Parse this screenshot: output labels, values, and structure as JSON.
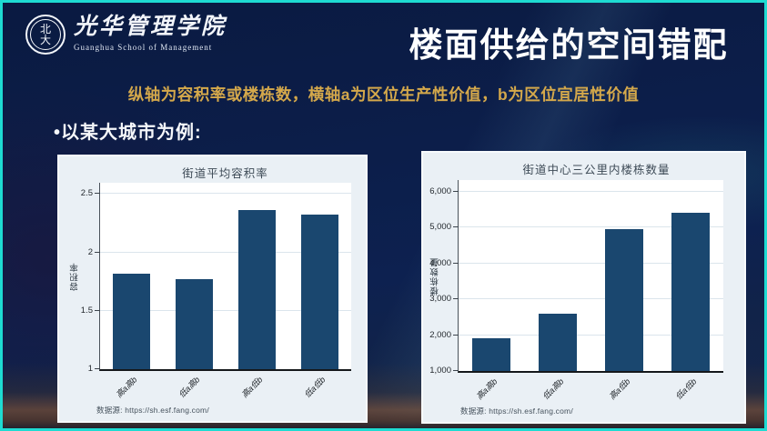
{
  "header": {
    "logo_cn": "光华管理学院",
    "logo_en": "Guanghua School of Management",
    "seal_glyph_top": "北",
    "seal_glyph_bottom": "大",
    "title": "楼面供给的空间错配"
  },
  "subtitle": "纵轴为容积率或楼栋数，横轴a为区位生产性价值，b为区位宜居性价值",
  "bullet": "•以某大城市为例:",
  "colors": {
    "frame_accent": "#1edbd2",
    "background_navy": "#0c1e4a",
    "subtitle_gold": "#d4a84b",
    "bar_navy": "#1a476f",
    "chart_card_bg": "#eaf0f5"
  },
  "chart_data": [
    {
      "type": "bar",
      "title": "街道平均容积率",
      "ylabel": "容积率",
      "xlabel": "",
      "categories": [
        "高a高b",
        "低a高b",
        "高a低b",
        "低a低b"
      ],
      "values": [
        1.82,
        1.77,
        2.36,
        2.32
      ],
      "ylim": [
        1,
        2.5
      ],
      "yticks": [
        1,
        1.5,
        2,
        2.5
      ],
      "ytick_labels": [
        "1",
        "1.5",
        "2",
        "2.5"
      ],
      "grid": true,
      "legend": "none",
      "note": "数据源: https://sh.esf.fang.com/"
    },
    {
      "type": "bar",
      "title": "街道中心三公里内楼栋数量",
      "ylabel": "楼栋数量",
      "xlabel": "",
      "categories": [
        "高a高b",
        "低a高b",
        "高a低b",
        "低a低b"
      ],
      "values": [
        1900,
        2600,
        4950,
        5400
      ],
      "ylim": [
        1000,
        6000
      ],
      "yticks": [
        1000,
        2000,
        3000,
        4000,
        5000,
        6000
      ],
      "ytick_labels": [
        "1,000",
        "2,000",
        "3,000",
        "4,000",
        "5,000",
        "6,000"
      ],
      "grid": true,
      "legend": "none",
      "note": "数据源: https://sh.esf.fang.com/"
    }
  ]
}
